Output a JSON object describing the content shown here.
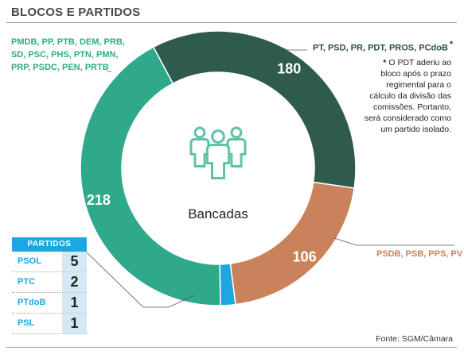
{
  "title": "BLOCOS E PARTIDOS",
  "source": "Fonte: SGM/Câmara",
  "center_label": "Bancadas",
  "center_icon": "people-group-icon",
  "groups": {
    "green": "PMDB, PP, PTB, DEM, PRB, SD, PSC, PHS, PTN, PMN, PRP, PSDC, PEN, PRTB",
    "dark": "PT, PSD, PR, PDT, PROS, PCdoB",
    "dark_star": "*",
    "orange": "PSDB, PSB, PPS, PV"
  },
  "footnote": {
    "star": "*",
    "text": "O PDT aderiu ao bloco após o prazo regimental para o cálculo da divisão das comissões. Portanto, será considerado como um partido isolado."
  },
  "small_parties": {
    "header": "PARTIDOS",
    "rows": [
      {
        "name": "PSOL",
        "value": "5"
      },
      {
        "name": "PTC",
        "value": "2"
      },
      {
        "name": "PTdoB",
        "value": "1"
      },
      {
        "name": "PSL",
        "value": "1"
      }
    ]
  },
  "colors": {
    "green": "#2eaa8a",
    "dark": "#2f5a4e",
    "orange": "#c9825a",
    "blue": "#1da6e0",
    "icon": "#5fc2a6"
  },
  "chart_data": {
    "type": "pie",
    "title": "BLOCOS E PARTIDOS",
    "categories": [
      "PT, PSD, PR, PDT, PROS, PCdoB",
      "PSDB, PSB, PPS, PV",
      "Partidos isolados (PSOL, PTC, PTdoB, PSL)",
      "PMDB, PP, PTB, DEM, PRB, SD, PSC, PHS, PTN, PMN, PRP, PSDC, PEN, PRTB"
    ],
    "values": [
      180,
      106,
      9,
      218
    ],
    "value_labels": [
      "180",
      "106",
      "",
      "218"
    ],
    "colors": [
      "#2f5a4e",
      "#c9825a",
      "#1da6e0",
      "#2eaa8a"
    ]
  }
}
